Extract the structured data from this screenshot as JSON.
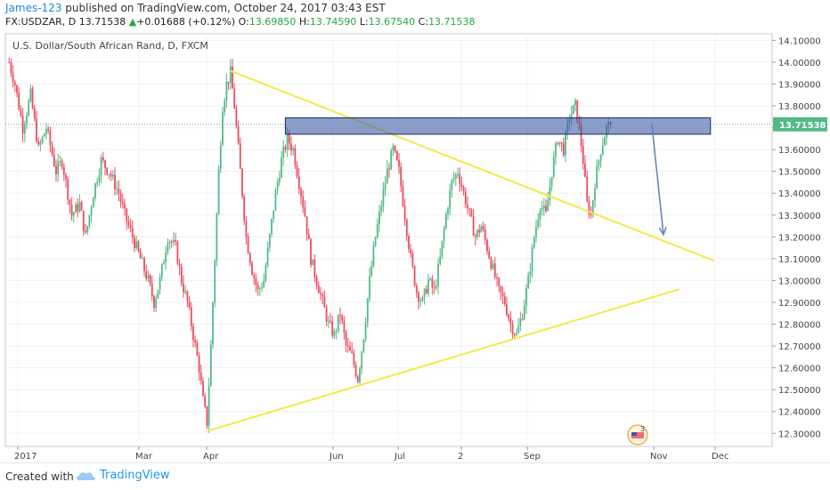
{
  "header": {
    "author": "James-123",
    "published_text": " published on TradingView.com, October 24, 2017 03:43 EST",
    "symbol": "FX:USDZAR, D",
    "last": "13.71538",
    "change_arrow": "▲",
    "change": "+0.01688 (+0.12%)",
    "o_label": "O:",
    "o_value": "13.69850",
    "h_label": "H:",
    "h_value": "13.74590",
    "l_label": "L:",
    "l_value": "13.67540",
    "c_label": "C:",
    "c_value": "13.71538"
  },
  "footer": {
    "created_with": "Created with",
    "brand": "TradingView"
  },
  "chart_data": {
    "type": "candlestick",
    "title": "U.S. Dollar/South African Rand, D, FXCM",
    "x_tick_labels": [
      "2017",
      "Mar",
      "Apr",
      "Jun",
      "Jul",
      "2",
      "Sep",
      "Nov",
      "Dec"
    ],
    "y_tick_labels": [
      "12.30000",
      "12.40000",
      "12.50000",
      "12.60000",
      "12.70000",
      "12.80000",
      "12.90000",
      "13.00000",
      "13.10000",
      "13.20000",
      "13.30000",
      "13.40000",
      "13.50000",
      "13.60000",
      "13.70000",
      "13.80000",
      "13.90000",
      "14.00000",
      "14.10000"
    ],
    "ylim": [
      12.24,
      14.13
    ],
    "last_price_label": "13.71538",
    "last_price": 13.71538,
    "price_path": [
      [
        1,
        14.0
      ],
      [
        4,
        13.9
      ],
      [
        8,
        13.7
      ],
      [
        12,
        13.85
      ],
      [
        16,
        13.6
      ],
      [
        20,
        13.7
      ],
      [
        25,
        13.5
      ],
      [
        28,
        13.55
      ],
      [
        33,
        13.3
      ],
      [
        37,
        13.35
      ],
      [
        40,
        13.2
      ],
      [
        44,
        13.4
      ],
      [
        48,
        13.55
      ],
      [
        52,
        13.5
      ],
      [
        57,
        13.4
      ],
      [
        60,
        13.3
      ],
      [
        64,
        13.2
      ],
      [
        68,
        13.1
      ],
      [
        72,
        13.0
      ],
      [
        75,
        12.9
      ],
      [
        78,
        13.0
      ],
      [
        82,
        13.2
      ],
      [
        86,
        13.15
      ],
      [
        89,
        13.0
      ],
      [
        92,
        12.9
      ],
      [
        95,
        12.75
      ],
      [
        98,
        12.6
      ],
      [
        100,
        12.45
      ],
      [
        102,
        12.35
      ],
      [
        104,
        12.7
      ],
      [
        106,
        13.1
      ],
      [
        108,
        13.5
      ],
      [
        110,
        13.8
      ],
      [
        112,
        13.9
      ],
      [
        114,
        13.95
      ],
      [
        116,
        13.8
      ],
      [
        118,
        13.6
      ],
      [
        120,
        13.4
      ],
      [
        122,
        13.2
      ],
      [
        125,
        13.05
      ],
      [
        128,
        12.95
      ],
      [
        131,
        13.0
      ],
      [
        134,
        13.2
      ],
      [
        137,
        13.4
      ],
      [
        140,
        13.55
      ],
      [
        143,
        13.65
      ],
      [
        146,
        13.6
      ],
      [
        149,
        13.45
      ],
      [
        152,
        13.3
      ],
      [
        155,
        13.1
      ],
      [
        158,
        13.0
      ],
      [
        161,
        12.9
      ],
      [
        164,
        12.8
      ],
      [
        167,
        12.75
      ],
      [
        170,
        12.85
      ],
      [
        173,
        12.7
      ],
      [
        176,
        12.65
      ],
      [
        179,
        12.55
      ],
      [
        182,
        12.75
      ],
      [
        185,
        13.0
      ],
      [
        188,
        13.2
      ],
      [
        191,
        13.35
      ],
      [
        194,
        13.5
      ],
      [
        197,
        13.6
      ],
      [
        200,
        13.5
      ],
      [
        203,
        13.3
      ],
      [
        206,
        13.1
      ],
      [
        209,
        12.95
      ],
      [
        212,
        12.9
      ],
      [
        215,
        13.0
      ],
      [
        218,
        12.95
      ],
      [
        221,
        13.1
      ],
      [
        224,
        13.3
      ],
      [
        227,
        13.45
      ],
      [
        230,
        13.5
      ],
      [
        233,
        13.4
      ],
      [
        236,
        13.3
      ],
      [
        239,
        13.2
      ],
      [
        242,
        13.25
      ],
      [
        245,
        13.15
      ],
      [
        248,
        13.05
      ],
      [
        251,
        12.95
      ],
      [
        254,
        12.9
      ],
      [
        257,
        12.8
      ],
      [
        260,
        12.75
      ],
      [
        263,
        12.85
      ],
      [
        266,
        13.0
      ],
      [
        269,
        13.2
      ],
      [
        272,
        13.35
      ],
      [
        275,
        13.3
      ],
      [
        278,
        13.5
      ],
      [
        281,
        13.65
      ],
      [
        284,
        13.6
      ],
      [
        287,
        13.75
      ],
      [
        290,
        13.8
      ],
      [
        292,
        13.7
      ],
      [
        294,
        13.55
      ],
      [
        296,
        13.35
      ],
      [
        298,
        13.3
      ],
      [
        300,
        13.45
      ],
      [
        303,
        13.6
      ],
      [
        306,
        13.7
      ],
      [
        308,
        13.715
      ]
    ],
    "annotations": [
      {
        "type": "trendline",
        "color": "#f5e84a",
        "points": [
          [
            114,
            13.96
          ],
          [
            361,
            13.09
          ]
        ]
      },
      {
        "type": "trendline",
        "color": "#f5e84a",
        "points": [
          [
            102,
            12.31
          ],
          [
            343,
            12.96
          ]
        ]
      },
      {
        "type": "rectangle",
        "color": "#3f5aa8",
        "y_range": [
          13.67,
          13.745
        ],
        "x_range": [
          142,
          359
        ]
      },
      {
        "type": "arrow",
        "color": "#6b86b5",
        "points": [
          [
            329,
            13.72
          ],
          [
            335,
            13.21
          ]
        ]
      }
    ]
  }
}
